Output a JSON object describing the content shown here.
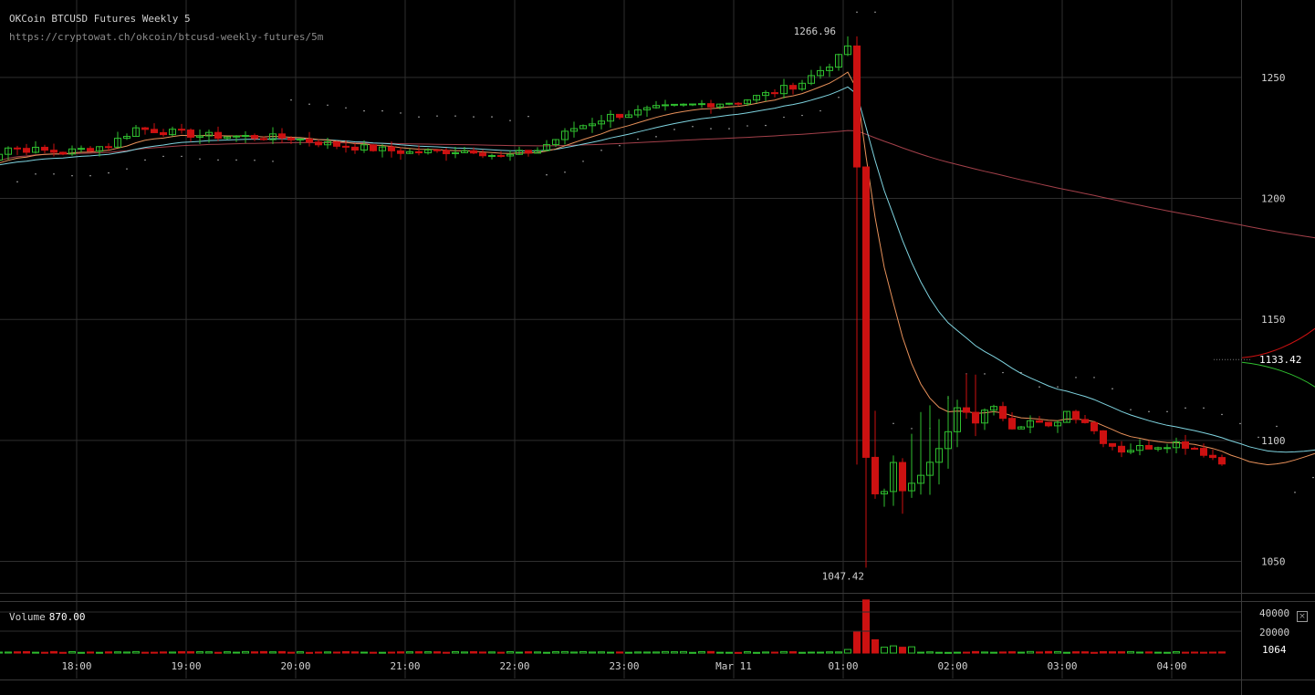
{
  "header": {
    "title": "OKCoin BTCUSD Futures Weekly 5",
    "url": "https://cryptowat.ch/okcoin/btcusd-weekly-futures/5m"
  },
  "volume_label": "Volume",
  "volume_value": "870.00",
  "close_glyph": "×",
  "colors": {
    "background": "#000000",
    "grid": "#2e2e2e",
    "up": "#2fbf2f",
    "down": "#cc1111",
    "ema_fast": "#e8915a",
    "ema_slow": "#7fd4e0",
    "sma_long": "#a3404a",
    "dots": "#cfcfcf",
    "text": "#d0d0d0"
  },
  "chart_data": {
    "type": "candlestick",
    "title": "OKCoin BTCUSD Futures Weekly 5",
    "x_ticks": [
      "18:00",
      "19:00",
      "20:00",
      "21:00",
      "22:00",
      "23:00",
      "Mar 11",
      "01:00",
      "02:00",
      "03:00",
      "04:00"
    ],
    "y_ticks": [
      1050,
      1100,
      1150,
      1200,
      1250
    ],
    "ylim": [
      1037,
      1282
    ],
    "high_label": "1266.96",
    "low_label": "1047.42",
    "last_price": "1133.42",
    "volume_ticks": [
      "40000",
      "20000",
      "1064"
    ],
    "volume_ylim": [
      0,
      50000
    ]
  }
}
